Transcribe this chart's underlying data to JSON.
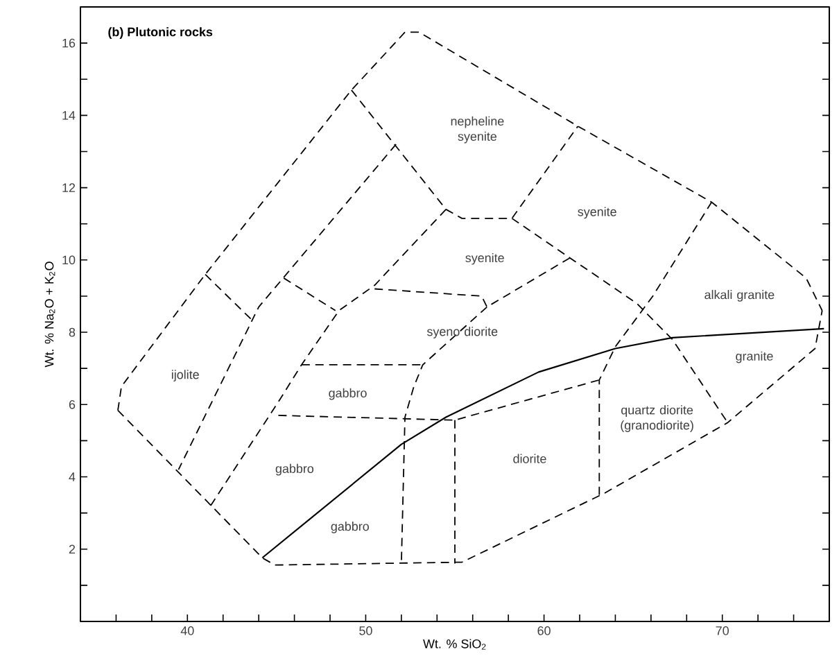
{
  "chart_data": {
    "type": "line",
    "title": "(b) Plutonic rocks",
    "xlabel": "Wt. % SiO$_{2}$",
    "ylabel": "Wt. % Na$_{2}$O + K$_{2}$O",
    "xlim": [
      34,
      76
    ],
    "ylim": [
      0,
      17
    ],
    "xticks": [
      {
        "value": 36,
        "label": null
      },
      {
        "value": 38,
        "label": null
      },
      40,
      {
        "value": 42,
        "label": null
      },
      {
        "value": 44,
        "label": null
      },
      {
        "value": 46,
        "label": null
      },
      {
        "value": 48,
        "label": null
      },
      50,
      {
        "value": 52,
        "label": null
      },
      {
        "value": 54,
        "label": null
      },
      {
        "value": 56,
        "label": null
      },
      {
        "value": 58,
        "label": null
      },
      60,
      {
        "value": 62,
        "label": null
      },
      {
        "value": 64,
        "label": null
      },
      {
        "value": 66,
        "label": null
      },
      {
        "value": 68,
        "label": null
      },
      70,
      {
        "value": 72,
        "label": null
      },
      {
        "value": 74,
        "label": null
      }
    ],
    "yticks": [
      {
        "value": 1,
        "label": null
      },
      2,
      {
        "value": 3,
        "label": null
      },
      4,
      {
        "value": 5,
        "label": null
      },
      6,
      {
        "value": 7,
        "label": null
      },
      8,
      {
        "value": 9,
        "label": null
      },
      10,
      {
        "value": 11,
        "label": null
      },
      12,
      {
        "value": 13,
        "label": null
      },
      14,
      {
        "value": 15,
        "label": null
      },
      16
    ],
    "grid": false,
    "marker": "none",
    "series": [
      {
        "color": "#000000",
        "line_style": "solid",
        "x": [
          44.2,
          52.0,
          54.5,
          59.7,
          64.0,
          67.2,
          75.7
        ],
        "values": [
          1.76,
          4.9,
          5.65,
          6.9,
          7.55,
          7.85,
          8.1
        ]
      },
      {
        "color": "#000000",
        "line_style": "dashed",
        "x": [
          36.1,
          36.3,
          41.0,
          49.2,
          52.2,
          53.0,
          61.9,
          69.4,
          74.7,
          75.6
        ],
        "values": [
          5.84,
          6.5,
          9.6,
          14.7,
          16.3,
          16.3,
          13.7,
          11.6,
          9.5,
          8.6
        ]
      },
      {
        "color": "#000000",
        "line_style": "dashed",
        "x": [
          36.1,
          44.2,
          44.9,
          55.4,
          63.4,
          70.3,
          75.2,
          75.6
        ],
        "values": [
          5.84,
          1.76,
          1.56,
          1.64,
          3.55,
          5.5,
          7.55,
          8.6
        ]
      },
      {
        "color": "#000000",
        "line_style": "dashed",
        "x": [
          49.2,
          54.5,
          55.4,
          58.2,
          61.9
        ],
        "values": [
          14.7,
          11.4,
          11.15,
          11.15,
          13.7
        ]
      },
      {
        "color": "#000000",
        "line_style": "dashed",
        "x": [
          51.7,
          44.0,
          39.5
        ],
        "values": [
          13.2,
          8.7,
          4.2
        ]
      },
      {
        "color": "#000000",
        "line_style": "dashed",
        "x": [
          54.5,
          50.5,
          48.5,
          46.4,
          45.2,
          41.3
        ],
        "values": [
          11.4,
          9.3,
          8.6,
          7.1,
          6.15,
          3.2
        ]
      },
      {
        "color": "#000000",
        "line_style": "dashed",
        "x": [
          41.0,
          43.7
        ],
        "values": [
          9.6,
          8.3
        ]
      },
      {
        "color": "#000000",
        "line_style": "dashed",
        "x": [
          45.4,
          48.3
        ],
        "values": [
          9.5,
          8.6
        ]
      },
      {
        "color": "#000000",
        "line_style": "dashed",
        "x": [
          50.5,
          56.5,
          56.8,
          61.6
        ],
        "values": [
          9.2,
          9.0,
          8.7,
          10.1
        ]
      },
      {
        "color": "#000000",
        "line_style": "dashed",
        "x": [
          56.8,
          53.2,
          52.7,
          52.2,
          52.0
        ],
        "values": [
          8.7,
          7.1,
          6.5,
          5.65,
          1.6
        ]
      },
      {
        "color": "#000000",
        "line_style": "dashed",
        "x": [
          46.4,
          53.2
        ],
        "values": [
          7.1,
          7.1
        ]
      },
      {
        "color": "#000000",
        "line_style": "dashed",
        "x": [
          45.1,
          55.0,
          63.1
        ],
        "values": [
          5.7,
          5.57,
          6.68
        ]
      },
      {
        "color": "#000000",
        "line_style": "dashed",
        "x": [
          55.0,
          55.0
        ],
        "values": [
          5.57,
          1.6
        ]
      },
      {
        "color": "#000000",
        "line_style": "dashed",
        "x": [
          63.1,
          63.1,
          64.0,
          66.1,
          69.4
        ],
        "values": [
          3.5,
          6.68,
          7.6,
          9.0,
          11.6
        ]
      },
      {
        "color": "#000000",
        "line_style": "dashed",
        "x": [
          58.2,
          65.2,
          67.2,
          70.3
        ],
        "values": [
          11.15,
          8.8,
          7.8,
          5.5
        ]
      }
    ],
    "annotations": [
      "nepheline syenite",
      "syenite",
      "syenite",
      "alkali granite",
      "syeno diorite",
      "granite",
      "quartz diorite (granodiorite)",
      "diorite",
      "ijolite",
      "gabbro",
      "gabbro",
      "gabbro"
    ]
  }
}
